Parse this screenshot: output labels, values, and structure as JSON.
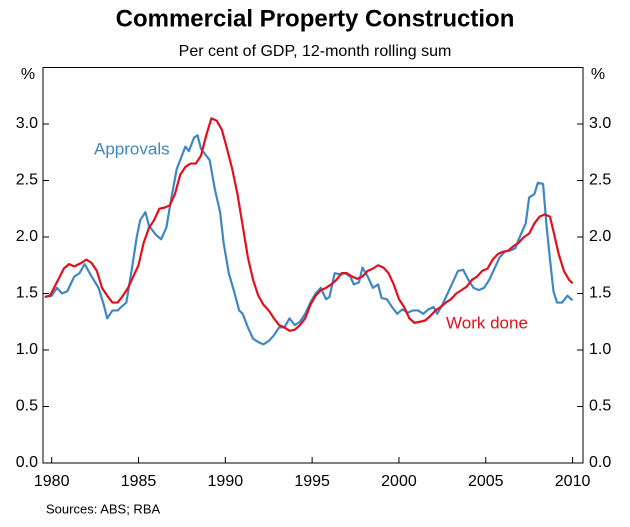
{
  "chart_data": {
    "type": "line",
    "title": "Commercial Property Construction",
    "subtitle": "Per cent of GDP, 12-month rolling sum",
    "y_unit": "%",
    "y2_unit": "%",
    "source": "Sources: ABS; RBA",
    "xlim": [
      1979.5,
      2010.6
    ],
    "xticks": [
      1980,
      1985,
      1990,
      1995,
      2000,
      2005,
      2010
    ],
    "ylim": [
      0,
      3.5
    ],
    "yticks": [
      {
        "value": 0,
        "label": "0.0"
      },
      {
        "value": 0.5,
        "label": "0.5"
      },
      {
        "value": 1,
        "label": "1.0"
      },
      {
        "value": 1.5,
        "label": "1.5"
      },
      {
        "value": 2,
        "label": "2.0"
      },
      {
        "value": 2.5,
        "label": "2.5"
      },
      {
        "value": 3,
        "label": "3.0"
      }
    ],
    "y2lim": [
      0,
      3.5
    ],
    "y2ticks": [
      {
        "value": 0,
        "label": "0.0"
      },
      {
        "value": 0.5,
        "label": "0.5"
      },
      {
        "value": 1,
        "label": "1.0"
      },
      {
        "value": 1.5,
        "label": "1.5"
      },
      {
        "value": 2,
        "label": "2.0"
      },
      {
        "value": 2.5,
        "label": "2.5"
      },
      {
        "value": 3,
        "label": "3.0"
      }
    ],
    "grid": false,
    "series": [
      {
        "name": "Approvals",
        "color": "#3f87c4",
        "x": [
          1979.6,
          1980,
          1980.3,
          1980.6,
          1980.9,
          1981.3,
          1981.6,
          1981.9,
          1982.3,
          1982.7,
          1983,
          1983.2,
          1983.5,
          1983.8,
          1984,
          1984.3,
          1984.6,
          1984.9,
          1985.1,
          1985.4,
          1985.6,
          1986,
          1986.3,
          1986.6,
          1986.9,
          1987.2,
          1987.5,
          1987.7,
          1987.9,
          1988.2,
          1988.4,
          1988.6,
          1988.9,
          1989.1,
          1989.4,
          1989.7,
          1989.9,
          1990.2,
          1990.5,
          1990.8,
          1991,
          1991.3,
          1991.6,
          1991.9,
          1992.2,
          1992.5,
          1992.8,
          1993.1,
          1993.4,
          1993.7,
          1994,
          1994.3,
          1994.6,
          1994.9,
          1995.2,
          1995.5,
          1995.8,
          1996,
          1996.3,
          1996.6,
          1996.9,
          1997.2,
          1997.4,
          1997.7,
          1997.9,
          1998.2,
          1998.5,
          1998.8,
          1999,
          1999.3,
          1999.6,
          1999.9,
          2000.2,
          2000.5,
          2000.8,
          2001.1,
          2001.4,
          2001.7,
          2002,
          2002.2,
          2002.5,
          2002.8,
          2003.1,
          2003.4,
          2003.7,
          2004,
          2004.3,
          2004.6,
          2004.9,
          2005.2,
          2005.5,
          2005.8,
          2006.1,
          2006.4,
          2006.7,
          2006.9,
          2007.1,
          2007.3,
          2007.5,
          2007.8,
          2008,
          2008.3,
          2008.5,
          2008.7,
          2008.9,
          2009.1,
          2009.4,
          2009.7,
          2010
        ],
        "values": [
          1.47,
          1.48,
          1.55,
          1.5,
          1.52,
          1.65,
          1.68,
          1.76,
          1.65,
          1.55,
          1.4,
          1.28,
          1.35,
          1.35,
          1.38,
          1.42,
          1.7,
          2.0,
          2.15,
          2.22,
          2.1,
          2.02,
          1.98,
          2.08,
          2.35,
          2.6,
          2.72,
          2.8,
          2.76,
          2.88,
          2.9,
          2.78,
          2.72,
          2.68,
          2.42,
          2.22,
          1.95,
          1.68,
          1.52,
          1.35,
          1.32,
          1.2,
          1.1,
          1.07,
          1.05,
          1.08,
          1.13,
          1.2,
          1.2,
          1.28,
          1.22,
          1.25,
          1.32,
          1.42,
          1.5,
          1.55,
          1.45,
          1.47,
          1.68,
          1.67,
          1.68,
          1.65,
          1.58,
          1.6,
          1.73,
          1.65,
          1.55,
          1.58,
          1.46,
          1.45,
          1.38,
          1.32,
          1.36,
          1.33,
          1.35,
          1.35,
          1.32,
          1.36,
          1.38,
          1.32,
          1.4,
          1.5,
          1.6,
          1.7,
          1.71,
          1.62,
          1.55,
          1.53,
          1.55,
          1.62,
          1.72,
          1.82,
          1.87,
          1.88,
          1.9,
          1.98,
          2.05,
          2.12,
          2.35,
          2.38,
          2.48,
          2.47,
          2.1,
          1.8,
          1.52,
          1.42,
          1.42,
          1.48,
          1.44
        ]
      },
      {
        "name": "Work done",
        "color": "#e0101e",
        "x": [
          1979.6,
          1979.9,
          1980.3,
          1980.7,
          1981,
          1981.3,
          1981.7,
          1982,
          1982.3,
          1982.6,
          1982.9,
          1983.2,
          1983.5,
          1983.8,
          1984.1,
          1984.4,
          1984.7,
          1985,
          1985.3,
          1985.6,
          1985.9,
          1986.2,
          1986.5,
          1986.8,
          1987.1,
          1987.4,
          1987.7,
          1988,
          1988.3,
          1988.6,
          1988.9,
          1989.2,
          1989.5,
          1989.8,
          1990.1,
          1990.4,
          1990.7,
          1991,
          1991.3,
          1991.6,
          1991.9,
          1992.2,
          1992.5,
          1992.8,
          1993.1,
          1993.4,
          1993.7,
          1994,
          1994.3,
          1994.6,
          1994.9,
          1995.2,
          1995.5,
          1995.8,
          1996.1,
          1996.4,
          1996.7,
          1997,
          1997.3,
          1997.6,
          1997.9,
          1998.2,
          1998.5,
          1998.8,
          1999.1,
          1999.4,
          1999.7,
          2000,
          2000.3,
          2000.6,
          2000.9,
          2001.2,
          2001.5,
          2001.8,
          2002.1,
          2002.4,
          2002.7,
          2003,
          2003.3,
          2003.6,
          2003.9,
          2004.2,
          2004.5,
          2004.8,
          2005.1,
          2005.4,
          2005.7,
          2006,
          2006.3,
          2006.6,
          2006.9,
          2007.2,
          2007.5,
          2007.8,
          2008.1,
          2008.4,
          2008.7,
          2008.9,
          2009.2,
          2009.5,
          2009.8,
          2010
        ],
        "values": [
          1.47,
          1.48,
          1.6,
          1.72,
          1.76,
          1.74,
          1.77,
          1.8,
          1.77,
          1.7,
          1.55,
          1.48,
          1.42,
          1.42,
          1.48,
          1.55,
          1.65,
          1.75,
          1.95,
          2.08,
          2.15,
          2.25,
          2.26,
          2.28,
          2.38,
          2.55,
          2.62,
          2.65,
          2.65,
          2.72,
          2.9,
          3.05,
          3.03,
          2.95,
          2.78,
          2.6,
          2.38,
          2.1,
          1.82,
          1.62,
          1.48,
          1.4,
          1.35,
          1.28,
          1.22,
          1.2,
          1.17,
          1.18,
          1.22,
          1.28,
          1.4,
          1.48,
          1.53,
          1.55,
          1.58,
          1.62,
          1.68,
          1.68,
          1.65,
          1.63,
          1.65,
          1.7,
          1.72,
          1.75,
          1.73,
          1.68,
          1.58,
          1.45,
          1.38,
          1.28,
          1.24,
          1.25,
          1.26,
          1.3,
          1.35,
          1.38,
          1.42,
          1.45,
          1.5,
          1.53,
          1.56,
          1.62,
          1.65,
          1.7,
          1.72,
          1.8,
          1.85,
          1.87,
          1.88,
          1.92,
          1.95,
          2.0,
          2.03,
          2.12,
          2.18,
          2.2,
          2.18,
          2.05,
          1.85,
          1.7,
          1.62,
          1.59
        ]
      }
    ]
  }
}
